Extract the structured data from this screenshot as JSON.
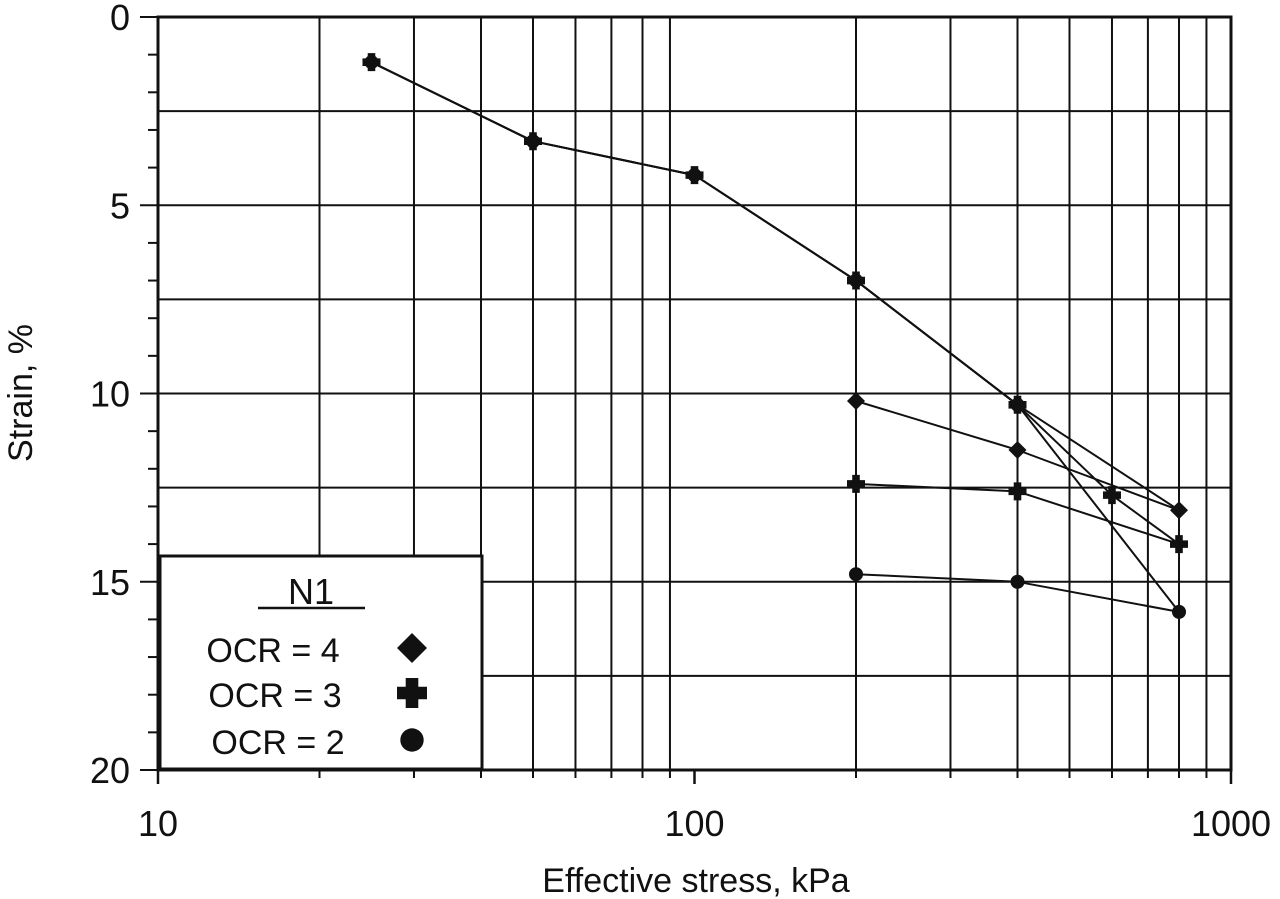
{
  "chart_data": {
    "type": "line",
    "xlabel": "Effective stress, kPa",
    "ylabel": "Strain, %",
    "x_scale": "log",
    "xlim": [
      10,
      1000
    ],
    "ylim": [
      0,
      20
    ],
    "y_inverted": true,
    "grid": true,
    "x_tick_labels": [
      "10",
      "100",
      "1000"
    ],
    "y_tick_labels": [
      "0",
      "5",
      "10",
      "15",
      "20"
    ],
    "legend": {
      "title": "N1",
      "placement": "bottom-left",
      "entries": [
        {
          "label": "OCR = 4",
          "marker": "diamond"
        },
        {
          "label": "OCR = 3",
          "marker": "plus"
        },
        {
          "label": "OCR = 2",
          "marker": "circle"
        }
      ]
    },
    "series": [
      {
        "marker": "diamond",
        "color": "#111111",
        "x": [
          25,
          50,
          100,
          200,
          400,
          800,
          400,
          200
        ],
        "y": [
          1.2,
          3.3,
          4.2,
          7.0,
          10.3,
          13.1,
          11.5,
          10.2
        ]
      },
      {
        "marker": "plus",
        "color": "#111111",
        "x": [
          25,
          50,
          100,
          200,
          400,
          600,
          800,
          400,
          200
        ],
        "y": [
          1.2,
          3.3,
          4.2,
          7.0,
          10.3,
          12.7,
          14.0,
          12.6,
          12.4
        ]
      },
      {
        "marker": "circle",
        "color": "#111111",
        "x": [
          25,
          50,
          100,
          200,
          400,
          800,
          400,
          200
        ],
        "y": [
          1.2,
          3.3,
          4.2,
          7.0,
          10.3,
          15.8,
          15.0,
          14.8
        ]
      }
    ]
  }
}
